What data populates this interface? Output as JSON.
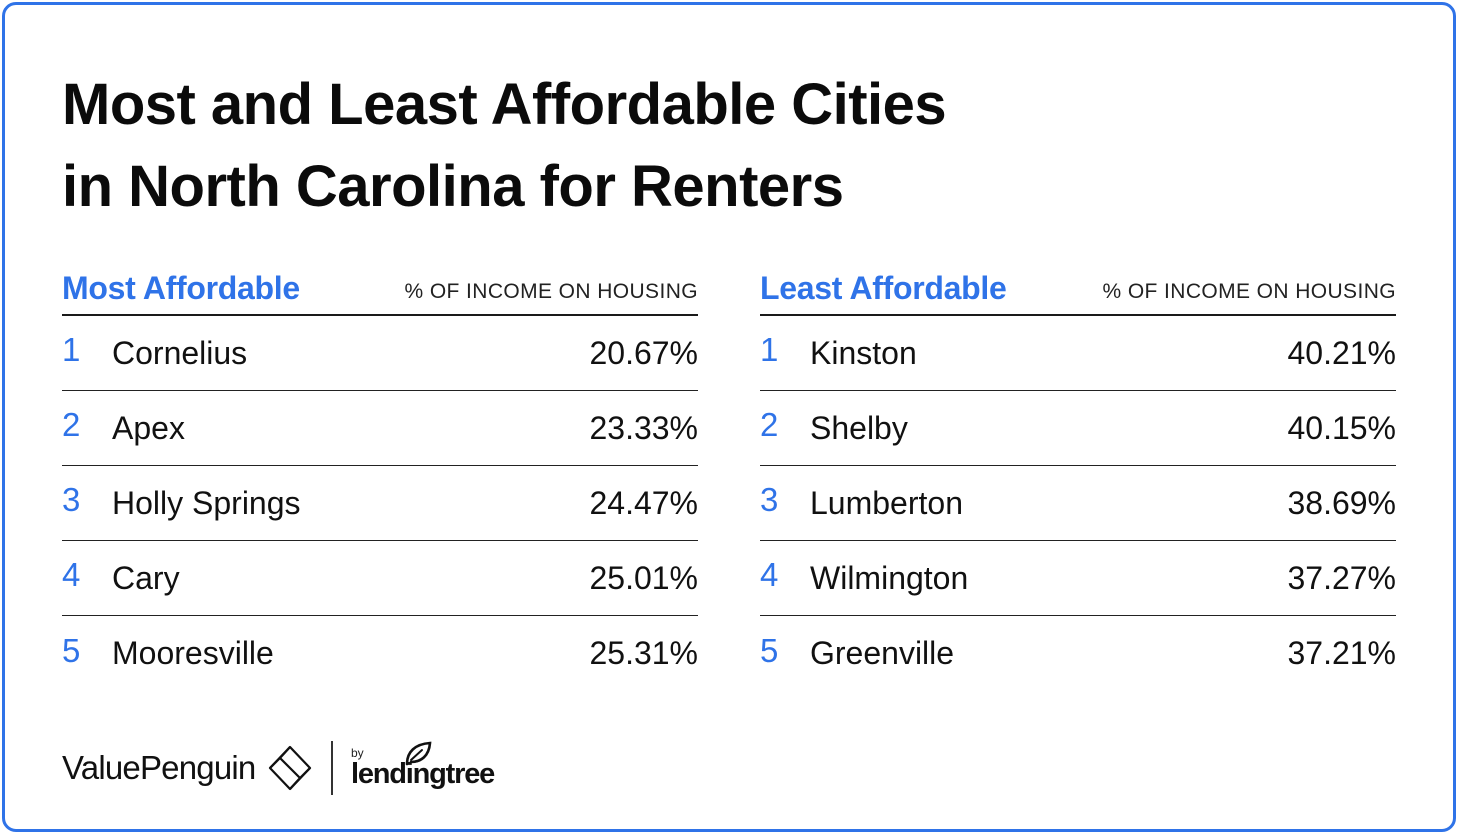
{
  "title_line1": "Most and Least Affordable Cities",
  "title_line2": "in North Carolina for Renters",
  "colors": {
    "accent": "#2f73e8",
    "text": "#111111",
    "border": "#2f73e8"
  },
  "chart_data": {
    "type": "table",
    "title": "Most and Least Affordable Cities in North Carolina for Renters",
    "most_affordable": {
      "heading": "Most Affordable",
      "column_header": "% OF INCOME ON HOUSING",
      "rows": [
        {
          "rank": "1",
          "city": "Cornelius",
          "value_text": "20.67%",
          "value": 20.67
        },
        {
          "rank": "2",
          "city": "Apex",
          "value_text": "23.33%",
          "value": 23.33
        },
        {
          "rank": "3",
          "city": "Holly Springs",
          "value_text": "24.47%",
          "value": 24.47
        },
        {
          "rank": "4",
          "city": "Cary",
          "value_text": "25.01%",
          "value": 25.01
        },
        {
          "rank": "5",
          "city": "Mooresville",
          "value_text": "25.31%",
          "value": 25.31
        }
      ]
    },
    "least_affordable": {
      "heading": "Least Affordable",
      "column_header": "% OF INCOME ON HOUSING",
      "rows": [
        {
          "rank": "1",
          "city": "Kinston",
          "value_text": "40.21%",
          "value": 40.21
        },
        {
          "rank": "2",
          "city": "Shelby",
          "value_text": "40.15%",
          "value": 40.15
        },
        {
          "rank": "3",
          "city": "Lumberton",
          "value_text": "38.69%",
          "value": 38.69
        },
        {
          "rank": "4",
          "city": "Wilmington",
          "value_text": "37.27%",
          "value": 37.27
        },
        {
          "rank": "5",
          "city": "Greenville",
          "value_text": "37.21%",
          "value": 37.21
        }
      ]
    }
  },
  "footer": {
    "brand": "ValuePenguin",
    "brand_icon": "valuepenguin-logo-icon",
    "partner_by": "by",
    "partner": "lendingtree",
    "partner_icon": "lendingtree-leaf-icon"
  }
}
